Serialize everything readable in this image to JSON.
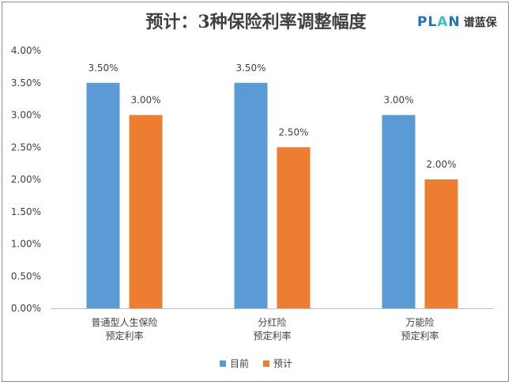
{
  "brand": {
    "plan_prefix": "PL",
    "plan_a": "A",
    "plan_suffix": "N",
    "cn": "谱蓝保"
  },
  "chart_data": {
    "type": "bar",
    "title": "预计：3种保险利率调整幅度",
    "categories": [
      [
        "普通型人生保险",
        "预定利率"
      ],
      [
        "分红险",
        "预定利率"
      ],
      [
        "万能险",
        "预定利率"
      ]
    ],
    "series": [
      {
        "name": "目前",
        "color": "#5b9bd5",
        "values": [
          3.5,
          3.5,
          3.0
        ],
        "labels": [
          "3.50%",
          "3.50%",
          "3.00%"
        ]
      },
      {
        "name": "预计",
        "color": "#ed7d31",
        "values": [
          3.0,
          2.5,
          2.0
        ],
        "labels": [
          "3.00%",
          "2.50%",
          "2.00%"
        ]
      }
    ],
    "ylim": [
      0,
      4
    ],
    "yticks": [
      "0.00%",
      "0.50%",
      "1.00%",
      "1.50%",
      "2.00%",
      "2.50%",
      "3.00%",
      "3.50%",
      "4.00%"
    ],
    "legend_position": "bottom",
    "grid": false
  }
}
